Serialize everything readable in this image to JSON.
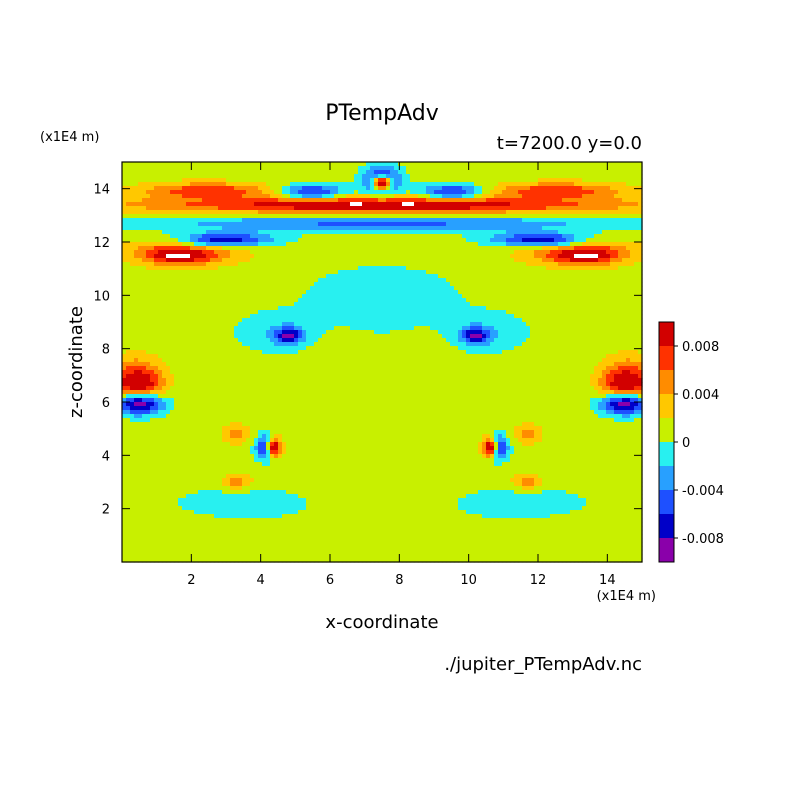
{
  "chart_data": {
    "type": "heatmap",
    "title": "PTempAdv",
    "subtitle": "t=7200.0 y=0.0",
    "xlabel": "x-coordinate",
    "ylabel": "z-coordinate",
    "x_unit": "(x1E4 m)",
    "z_unit": "(x1E4 m)",
    "xlim": [
      0,
      15
    ],
    "zlim": [
      0,
      15
    ],
    "x_ticks": [
      2,
      4,
      6,
      8,
      10,
      12,
      14
    ],
    "z_ticks": [
      2,
      4,
      6,
      8,
      10,
      12,
      14
    ],
    "colorbar": {
      "levels": [
        -0.01,
        -0.008,
        -0.006,
        -0.004,
        -0.002,
        0,
        0.002,
        0.004,
        0.006,
        0.008,
        0.01
      ],
      "colors": [
        "#8a00aa",
        "#0000c8",
        "#1e50ff",
        "#28a0ff",
        "#28f0f0",
        "#c8f000",
        "#ffc800",
        "#ff8c00",
        "#ff3200",
        "#d20000",
        "#ffb4b4"
      ],
      "tick_labels": [
        {
          "value": 0.008,
          "label": "0.008"
        },
        {
          "value": 0.004,
          "label": "0.004"
        },
        {
          "value": 0,
          "label": "0"
        },
        {
          "value": -0.004,
          "label": "-0.004"
        },
        {
          "value": -0.008,
          "label": "-0.008"
        }
      ]
    },
    "background_level": 0.001,
    "features": [
      {
        "x": 7.5,
        "z": 3.0,
        "rx": 4.2,
        "rz": 1.2,
        "v": 0.0012
      },
      {
        "x": 3.5,
        "z": 2.2,
        "rx": 2.5,
        "rz": 0.8,
        "v": -0.001
      },
      {
        "x": 11.5,
        "z": 2.2,
        "rx": 2.5,
        "rz": 0.8,
        "v": -0.001
      },
      {
        "x": 2.0,
        "z": 0.8,
        "rx": 2.0,
        "rz": 0.7,
        "v": 0.0012
      },
      {
        "x": 13.0,
        "z": 0.8,
        "rx": 2.0,
        "rz": 0.7,
        "v": 0.0012
      },
      {
        "x": 7.5,
        "z": 9.8,
        "rx": 2.8,
        "rz": 1.6,
        "v": -0.0012
      },
      {
        "x": 4.4,
        "z": 8.6,
        "rx": 1.4,
        "rz": 0.9,
        "v": -0.0012
      },
      {
        "x": 10.6,
        "z": 8.6,
        "rx": 1.4,
        "rz": 0.9,
        "v": -0.0012
      },
      {
        "x": 1.5,
        "z": 5.2,
        "rx": 1.5,
        "rz": 1.2,
        "v": 0.0012
      },
      {
        "x": 13.5,
        "z": 5.2,
        "rx": 1.5,
        "rz": 1.2,
        "v": 0.0012
      },
      {
        "x": 6.5,
        "z": 6.8,
        "rx": 0.9,
        "rz": 1.6,
        "v": 0.0012
      },
      {
        "x": 8.5,
        "z": 6.8,
        "rx": 0.9,
        "rz": 1.6,
        "v": 0.0012
      },
      {
        "x": 4.8,
        "z": 8.5,
        "rx": 0.45,
        "rz": 0.35,
        "v": -0.009
      },
      {
        "x": 10.2,
        "z": 8.5,
        "rx": 0.45,
        "rz": 0.35,
        "v": -0.009
      },
      {
        "x": 4.2,
        "z": 4.3,
        "rx": 0.35,
        "rz": 0.5,
        "v": -0.0095
      },
      {
        "x": 10.8,
        "z": 4.3,
        "rx": 0.35,
        "rz": 0.5,
        "v": -0.0095
      },
      {
        "x": 4.4,
        "z": 4.3,
        "rx": 0.25,
        "rz": 0.45,
        "v": 0.0105
      },
      {
        "x": 10.6,
        "z": 4.3,
        "rx": 0.25,
        "rz": 0.45,
        "v": 0.0105
      },
      {
        "x": 3.3,
        "z": 4.8,
        "rx": 0.4,
        "rz": 0.4,
        "v": 0.005
      },
      {
        "x": 11.7,
        "z": 4.8,
        "rx": 0.4,
        "rz": 0.4,
        "v": 0.005
      },
      {
        "x": 3.3,
        "z": 3.0,
        "rx": 0.5,
        "rz": 0.3,
        "v": 0.005
      },
      {
        "x": 11.7,
        "z": 3.0,
        "rx": 0.5,
        "rz": 0.3,
        "v": 0.005
      },
      {
        "x": 0.4,
        "z": 6.9,
        "rx": 0.8,
        "rz": 0.8,
        "v": 0.008
      },
      {
        "x": 14.6,
        "z": 6.9,
        "rx": 0.8,
        "rz": 0.8,
        "v": 0.008
      },
      {
        "x": 0.5,
        "z": 6.6,
        "rx": 0.6,
        "rz": 0.5,
        "v": 0.0105
      },
      {
        "x": 14.5,
        "z": 6.6,
        "rx": 0.6,
        "rz": 0.5,
        "v": 0.0105
      },
      {
        "x": 0.5,
        "z": 5.9,
        "rx": 0.8,
        "rz": 0.45,
        "v": -0.0085
      },
      {
        "x": 14.5,
        "z": 5.9,
        "rx": 0.8,
        "rz": 0.45,
        "v": -0.0085
      },
      {
        "x": 1.8,
        "z": 11.6,
        "rx": 1.6,
        "rz": 0.5,
        "v": 0.0085
      },
      {
        "x": 13.2,
        "z": 11.6,
        "rx": 1.6,
        "rz": 0.5,
        "v": 0.0085
      },
      {
        "x": 1.6,
        "z": 11.5,
        "rx": 0.8,
        "rz": 0.3,
        "v": 0.0105
      },
      {
        "x": 13.4,
        "z": 11.5,
        "rx": 0.8,
        "rz": 0.3,
        "v": 0.0105
      },
      {
        "x": 7.5,
        "z": 12.7,
        "rx": 7.5,
        "rz": 0.35,
        "v": -0.0045
      },
      {
        "x": 7.5,
        "z": 13.4,
        "rx": 7.5,
        "rz": 0.35,
        "v": 0.0105
      },
      {
        "x": 3.0,
        "z": 12.1,
        "rx": 1.5,
        "rz": 0.3,
        "v": -0.007
      },
      {
        "x": 12.0,
        "z": 12.1,
        "rx": 1.5,
        "rz": 0.3,
        "v": -0.007
      },
      {
        "x": 2.5,
        "z": 13.9,
        "rx": 2.0,
        "rz": 0.35,
        "v": 0.008
      },
      {
        "x": 12.5,
        "z": 13.9,
        "rx": 2.0,
        "rz": 0.35,
        "v": 0.008
      },
      {
        "x": 5.5,
        "z": 13.9,
        "rx": 1.0,
        "rz": 0.3,
        "v": -0.006
      },
      {
        "x": 9.5,
        "z": 13.9,
        "rx": 1.0,
        "rz": 0.3,
        "v": -0.006
      },
      {
        "x": 7.5,
        "z": 14.3,
        "rx": 0.6,
        "rz": 0.55,
        "v": -0.009
      },
      {
        "x": 7.5,
        "z": 14.2,
        "rx": 0.3,
        "rz": 0.3,
        "v": 0.0105
      },
      {
        "x": 4.0,
        "z": 14.6,
        "rx": 1.5,
        "rz": 0.3,
        "v": 0.0015
      },
      {
        "x": 11.0,
        "z": 14.6,
        "rx": 1.5,
        "rz": 0.3,
        "v": 0.0015
      }
    ]
  },
  "footer": {
    "filename": "./jupiter_PTempAdv.nc"
  }
}
